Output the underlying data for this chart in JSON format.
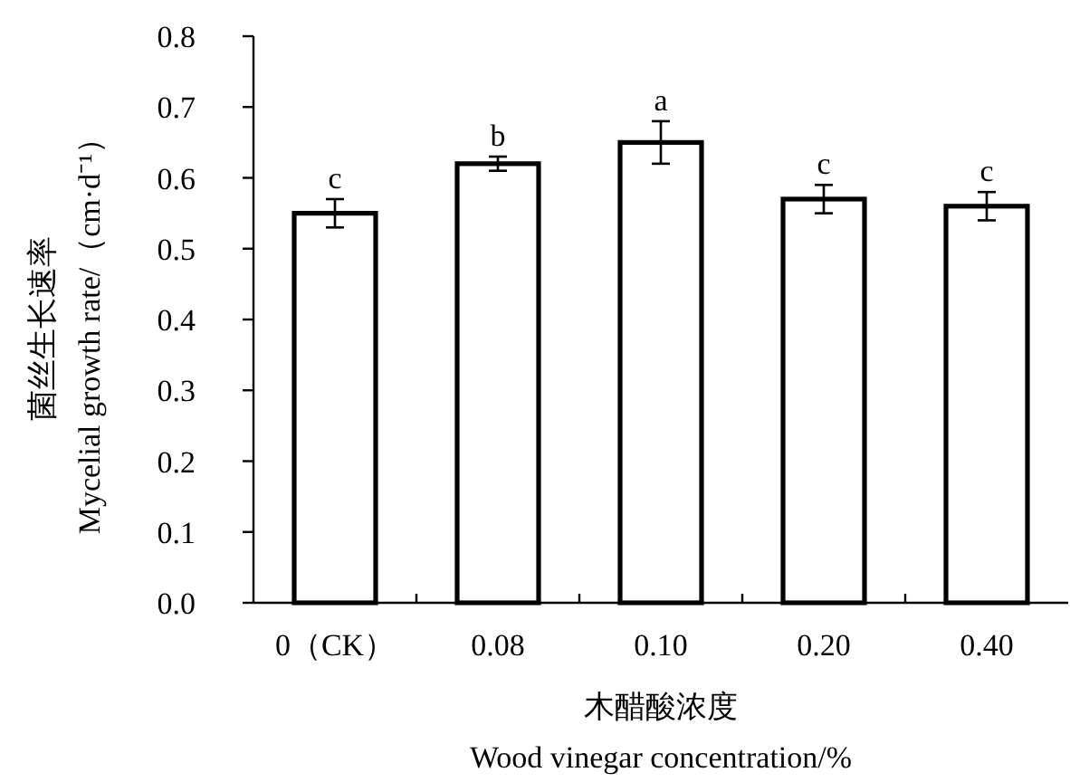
{
  "chart_data": {
    "type": "bar",
    "categories": [
      "0（CK）",
      "0.08",
      "0.10",
      "0.20",
      "0.40"
    ],
    "series": [
      {
        "color": "#ffffff",
        "values": [
          0.55,
          0.62,
          0.65,
          0.57,
          0.56
        ],
        "errors": [
          0.02,
          0.01,
          0.03,
          0.02,
          0.02
        ]
      }
    ],
    "ylabel": "菌丝生长速率\nMycelial growth rate/（cm·d⁻¹）",
    "xlabel": "木醋酸浓度\nWood vinegar concentration/%",
    "ylim": [
      0,
      0.8
    ],
    "yticks": [
      {
        "value": 0,
        "label": "0.0"
      },
      0.1,
      0.2,
      0.3,
      0.4,
      0.5,
      0.6,
      0.7,
      0.8
    ],
    "annotations": [
      {
        "text": "c",
        "x": "0（CK）",
        "y": 0.57
      },
      {
        "text": "b",
        "x": "0.08",
        "y": 0.63
      },
      {
        "text": "a",
        "x": "0.10",
        "y": 0.68
      },
      {
        "text": "c",
        "x": "0.20",
        "y": 0.59
      },
      {
        "text": "c",
        "x": "0.40",
        "y": 0.58
      }
    ],
    "grid": false
  }
}
